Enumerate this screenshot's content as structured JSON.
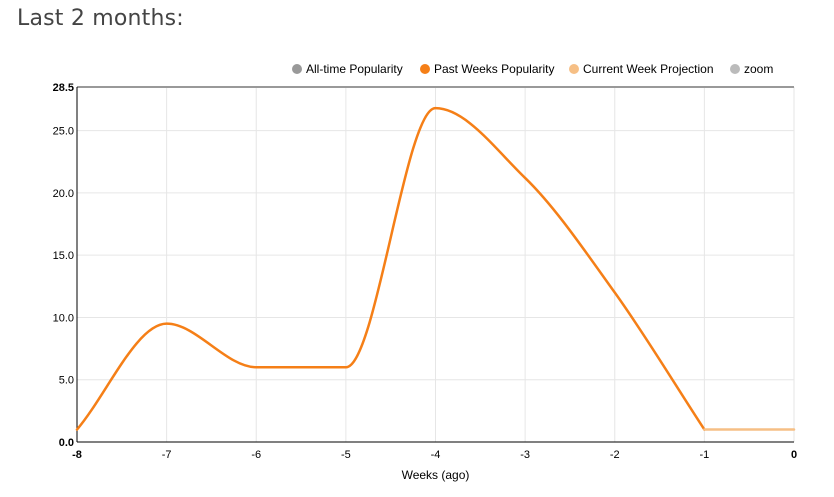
{
  "page": {
    "heading": "Last 2 months:"
  },
  "legend": [
    {
      "label": "All-time Popularity",
      "color": "#999999"
    },
    {
      "label": "Past Weeks Popularity",
      "color": "#f57f17"
    },
    {
      "label": "Current Week Projection",
      "color": "#f6bf85"
    },
    {
      "label": "zoom",
      "color": "#bbbbbb"
    }
  ],
  "chart_data": {
    "type": "line",
    "xlabel": "Weeks (ago)",
    "ylabel": "",
    "xlim": [
      -8,
      0
    ],
    "ylim": [
      0,
      28.5
    ],
    "x_ticks": [
      "-8",
      "-7",
      "-6",
      "-5",
      "-4",
      "-3",
      "-2",
      "-1",
      "0"
    ],
    "y_ticks": [
      "0.0",
      "5.0",
      "10.0",
      "15.0",
      "20.0",
      "25.0",
      "28.5"
    ],
    "grid": true,
    "legend_position": "top-right",
    "series": [
      {
        "name": "Past Weeks Popularity",
        "color": "#f57f17",
        "x": [
          -8,
          -7,
          -6,
          -5,
          -4,
          -3,
          -2,
          -1
        ],
        "y": [
          1.0,
          9.5,
          6.0,
          6.0,
          26.8,
          21.2,
          12.0,
          1.0
        ]
      },
      {
        "name": "Current Week Projection",
        "color": "#f6bf85",
        "x": [
          -1,
          0
        ],
        "y": [
          1.0,
          1.0
        ]
      }
    ]
  }
}
